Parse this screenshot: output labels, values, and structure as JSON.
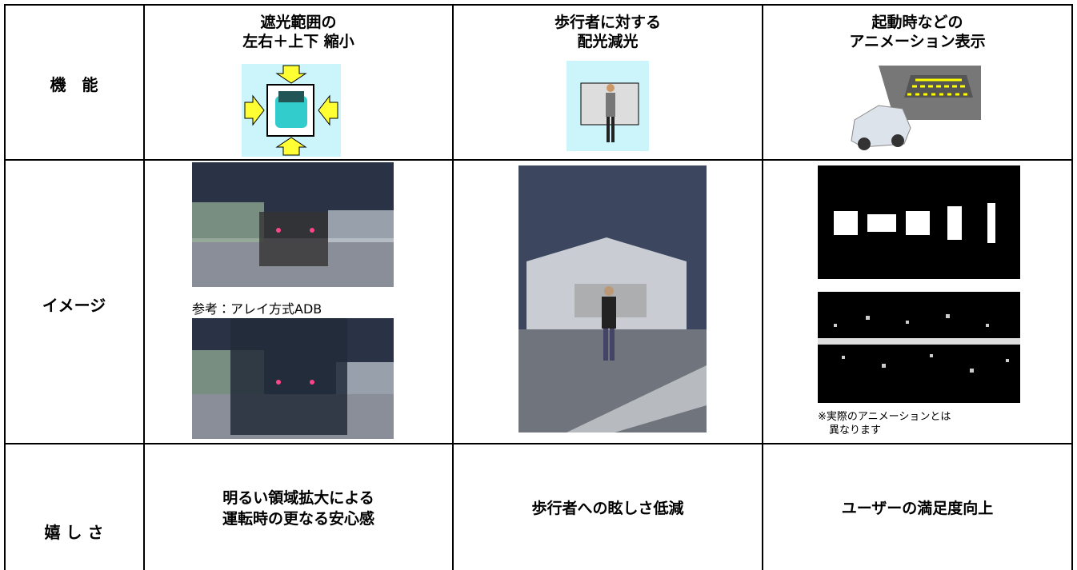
{
  "table": {
    "rows": [
      {
        "label": "機　能",
        "cells": [
          {
            "lines": [
              "遮光範囲の",
              "左右＋上下 縮小"
            ]
          },
          {
            "lines": [
              "歩行者に対する",
              "配光減光"
            ]
          },
          {
            "lines": [
              "起動時などの",
              "アニメーション表示"
            ]
          }
        ]
      },
      {
        "label": "イメージ",
        "cells": [
          {
            "caption": "参考：アレイ方式ADB"
          },
          {},
          {
            "note": [
              "※実際のアニメーションとは",
              "異なります"
            ]
          }
        ]
      },
      {
        "label": "嬉 し さ",
        "cells": [
          {
            "lines": [
              "明るい領域拡大による",
              "運転時の更なる安心感"
            ]
          },
          {
            "lines": [
              "歩行者への眩しさ低減"
            ]
          },
          {
            "lines": [
              "ユーザーの満足度向上"
            ]
          }
        ]
      }
    ]
  }
}
